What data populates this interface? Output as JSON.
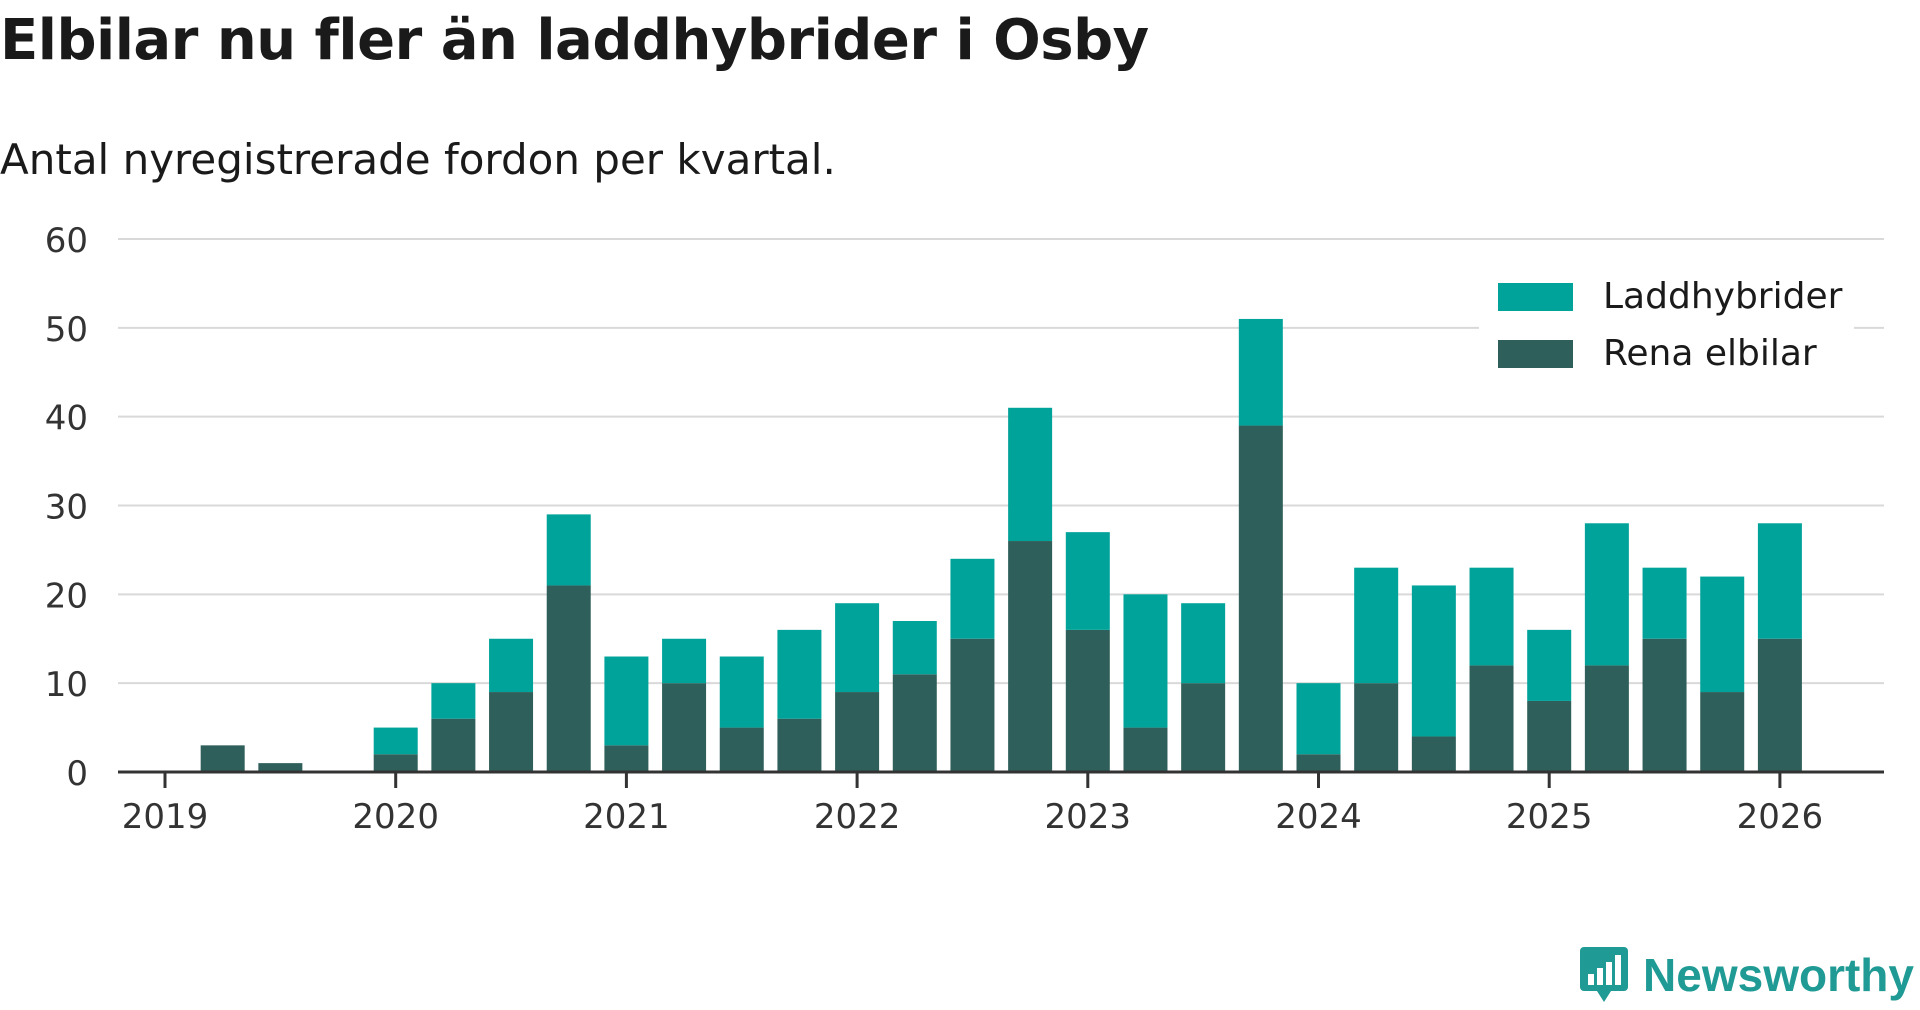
{
  "title": "Elbilar nu fler än laddhybrider i Osby",
  "subtitle": "Antal nyregistrerade fordon per kvartal.",
  "brand": "Newsworthy",
  "colors": {
    "laddhybrider": "#00a39a",
    "rena_elbilar": "#2f5f5a",
    "grid": "#d9d9d9",
    "axis": "#333333",
    "brand": "#1f9a94"
  },
  "chart_data": {
    "type": "bar",
    "stacked": true,
    "x_ticks": [
      "2019",
      "2020",
      "2021",
      "2022",
      "2023",
      "2024",
      "2025",
      "2026"
    ],
    "y_ticks": [
      0,
      10,
      20,
      30,
      40,
      50,
      60
    ],
    "ylim": [
      0,
      60
    ],
    "legend_position": "top-right",
    "quarters_start": "2019-Q1",
    "series": [
      {
        "name": "Rena elbilar",
        "values": [
          0,
          3,
          1,
          0,
          2,
          6,
          9,
          21,
          3,
          10,
          5,
          6,
          9,
          11,
          15,
          26,
          16,
          5,
          10,
          39,
          2,
          10,
          4,
          12,
          8,
          12,
          15,
          9,
          15
        ]
      },
      {
        "name": "Laddhybrider",
        "values": [
          0,
          0,
          0,
          0,
          3,
          4,
          6,
          8,
          10,
          5,
          8,
          10,
          10,
          6,
          9,
          15,
          11,
          15,
          9,
          12,
          8,
          13,
          17,
          11,
          8,
          16,
          8,
          13,
          13
        ]
      }
    ],
    "legend": [
      "Laddhybrider",
      "Rena elbilar"
    ],
    "grid": true,
    "xlabel": "",
    "ylabel": ""
  }
}
